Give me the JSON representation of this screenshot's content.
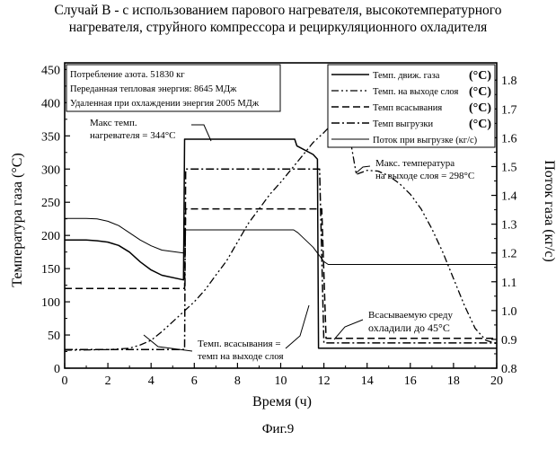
{
  "chart_data": {
    "type": "line",
    "title": "Случай В - с использованием парового нагревателя, высокотемпературного нагревателя, струйного компрессора и рециркуляционного охладителя",
    "title_lines": [
      "Случай В - с использованием парового нагревателя, высокотемпературного",
      "нагревателя, струйного компрессора и рециркуляционного охладителя"
    ],
    "figure_label": "Фиг.9",
    "xlabel": "Время (ч)",
    "ylabel": "Температура газа (°С)",
    "y2label": "Поток газа (кг/с)",
    "xlim": [
      0,
      20
    ],
    "ylim": [
      0,
      460
    ],
    "y2lim": [
      0.8,
      1.86
    ],
    "x_ticks": [
      0,
      2,
      4,
      6,
      8,
      10,
      12,
      14,
      16,
      18,
      20
    ],
    "y_ticks": [
      0,
      50,
      100,
      150,
      200,
      250,
      300,
      350,
      400,
      450
    ],
    "y2_ticks": [
      "0.8",
      "0.9",
      "1.0",
      "1.1",
      "1.2",
      "1.3",
      "1.4",
      "1.5",
      "1.6",
      "1.7",
      "1.8"
    ],
    "grid": false,
    "legend_position": "top-right",
    "info_box": [
      "Потребление азота.  51830  кг",
      "Переданная тепловая энергия:  8645  МДж",
      "Удаленная при охлаждении энергия  2005  МДж"
    ],
    "series": [
      {
        "name": "Темп. движ. газа",
        "unit": "(°С)",
        "axis": "left",
        "style": "solid",
        "points": [
          [
            0,
            193
          ],
          [
            1,
            193
          ],
          [
            1.5,
            192
          ],
          [
            2,
            190
          ],
          [
            2.5,
            185
          ],
          [
            3,
            175
          ],
          [
            3.5,
            160
          ],
          [
            4,
            148
          ],
          [
            4.5,
            140
          ],
          [
            5.5,
            133
          ],
          [
            5.55,
            345
          ],
          [
            7,
            345
          ],
          [
            10.65,
            345
          ],
          [
            10.75,
            335
          ],
          [
            11.5,
            322
          ],
          [
            11.7,
            315
          ],
          [
            11.75,
            30
          ],
          [
            20,
            30
          ]
        ]
      },
      {
        "name": "Темп. на выходе слоя",
        "unit": "(°С)",
        "axis": "left",
        "style": "dash-dot-dot",
        "points": [
          [
            0,
            27
          ],
          [
            2,
            28
          ],
          [
            3,
            30
          ],
          [
            3.5,
            35
          ],
          [
            4,
            42
          ],
          [
            4.5,
            55
          ],
          [
            5,
            70
          ],
          [
            5.5,
            85
          ],
          [
            6,
            100
          ],
          [
            6.5,
            118
          ],
          [
            7,
            140
          ],
          [
            7.5,
            162
          ],
          [
            8,
            190
          ],
          [
            8.5,
            218
          ],
          [
            9,
            240
          ],
          [
            9.5,
            262
          ],
          [
            10,
            280
          ],
          [
            10.5,
            300
          ],
          [
            11,
            320
          ],
          [
            11.5,
            340
          ],
          [
            12,
            355
          ],
          [
            12.5,
            372
          ],
          [
            13,
            385
          ],
          [
            13.5,
            292
          ],
          [
            14,
            298
          ],
          [
            14.5,
            297
          ],
          [
            15,
            290
          ],
          [
            15.5,
            278
          ],
          [
            16,
            262
          ],
          [
            16.5,
            240
          ],
          [
            17,
            210
          ],
          [
            17.5,
            175
          ],
          [
            18,
            135
          ],
          [
            18.5,
            95
          ],
          [
            19,
            60
          ],
          [
            19.5,
            42
          ],
          [
            20,
            37
          ]
        ]
      },
      {
        "name": "Темп всасывания",
        "unit": "(°С)",
        "axis": "left",
        "style": "dashed",
        "points": [
          [
            0,
            120
          ],
          [
            5.55,
            120
          ],
          [
            5.6,
            240
          ],
          [
            11.9,
            240
          ],
          [
            12.1,
            45
          ],
          [
            20,
            45
          ]
        ]
      },
      {
        "name": "Темп выгрузки",
        "unit": "(°С)",
        "axis": "left",
        "style": "dash-dot",
        "points": [
          [
            0,
            28
          ],
          [
            5.55,
            28
          ],
          [
            5.6,
            300
          ],
          [
            11.8,
            300
          ],
          [
            12.0,
            38
          ],
          [
            20,
            38
          ]
        ]
      },
      {
        "name": "Поток при выгрузке (кг/с)",
        "unit": "",
        "axis": "right",
        "style": "thin-solid",
        "points": [
          [
            0,
            1.32
          ],
          [
            1,
            1.32
          ],
          [
            1.5,
            1.318
          ],
          [
            2,
            1.31
          ],
          [
            2.5,
            1.295
          ],
          [
            3,
            1.27
          ],
          [
            3.5,
            1.245
          ],
          [
            4,
            1.225
          ],
          [
            4.5,
            1.21
          ],
          [
            5.5,
            1.2
          ],
          [
            5.55,
            1.28
          ],
          [
            10.6,
            1.28
          ],
          [
            10.8,
            1.27
          ],
          [
            11.5,
            1.22
          ],
          [
            12,
            1.17
          ],
          [
            12.2,
            1.16
          ],
          [
            20,
            1.16
          ]
        ]
      }
    ],
    "annotations": [
      {
        "text_lines": [
          "Макс темп.",
          "нагревателя = 344°С"
        ]
      },
      {
        "text_lines": [
          "Макс. температура",
          "на выходе слоя = 298°С"
        ]
      },
      {
        "text_lines": [
          "Темп. всасывания =",
          "темп  на выходе слоя"
        ]
      },
      {
        "text_lines": [
          "Всасываемую среду",
          "охладили до 45°С"
        ]
      }
    ]
  }
}
